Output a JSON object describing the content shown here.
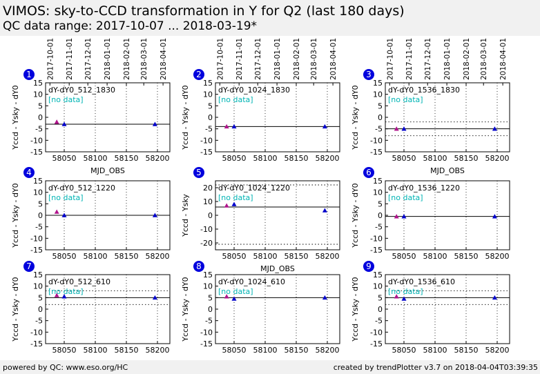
{
  "header": {
    "title": "VIMOS: sky-to-CCD transformation in Y for Q2 (last 180 days)",
    "subtitle": "QC data range: 2017-10-07 ... 2018-03-19*"
  },
  "footer": {
    "left": "powered by QC: www.eso.org/HC",
    "right": "created by trendPlotter v3.7 on 2018-04-04T03:39:35"
  },
  "colors": {
    "point_early": "#b0148c",
    "point": "#0000cc",
    "annotation": "#00b4b4",
    "panel_badge": "#0000dd",
    "header_bg": "#f1f1f1"
  },
  "chart_data": {
    "type": "scatter",
    "date_axis_ticks": [
      "2017-10-01",
      "2017-11-01",
      "2017-12-01",
      "2018-01-01",
      "2018-02-01",
      "2018-03-01",
      "2018-04-01"
    ],
    "x_ticks": [
      58050,
      58100,
      58150,
      58200
    ],
    "xlim": [
      58020,
      58220
    ],
    "x_marker": "^",
    "no_data_label": "[no data]",
    "panels": [
      {
        "number": "1",
        "label": "dY-dY0_512_1830",
        "ylabel": "Yccd - Ysky - dY0",
        "xlabel": "MJD_OBS",
        "ylim": [
          -15,
          15
        ],
        "yticks": [
          -15,
          -10,
          -5,
          0,
          5,
          10,
          15
        ],
        "ref_line": -3,
        "dotted": [],
        "show_date_axis": true,
        "points": [
          {
            "x": 58038,
            "y": -2
          },
          {
            "x": 58050,
            "y": -3
          },
          {
            "x": 58196,
            "y": -3
          }
        ]
      },
      {
        "number": "2",
        "label": "dY-dY0_1024_1830",
        "ylabel": "Yccd - Ysky - dY0",
        "xlabel": "",
        "ylim": [
          -15,
          15
        ],
        "yticks": [
          -15,
          -10,
          -5,
          0,
          5,
          10,
          15
        ],
        "ref_line": -4,
        "dotted": [],
        "show_date_axis": true,
        "points": [
          {
            "x": 58038,
            "y": -4
          },
          {
            "x": 58050,
            "y": -4
          },
          {
            "x": 58196,
            "y": -4
          }
        ]
      },
      {
        "number": "3",
        "label": "dY-dY0_1536_1830",
        "ylabel": "Yccd - Ysky - dY0",
        "xlabel": "MJD_OBS",
        "ylim": [
          -15,
          15
        ],
        "yticks": [
          -15,
          -10,
          -5,
          0,
          5,
          10,
          15
        ],
        "ref_line": -5,
        "dotted": [
          -2,
          -8
        ],
        "show_date_axis": true,
        "points": [
          {
            "x": 58038,
            "y": -5
          },
          {
            "x": 58050,
            "y": -5
          },
          {
            "x": 58196,
            "y": -5
          }
        ]
      },
      {
        "number": "4",
        "label": "dY-dY0_512_1220",
        "ylabel": "Yccd - Ysky - dY0",
        "xlabel": "",
        "ylim": [
          -15,
          15
        ],
        "yticks": [
          -15,
          -10,
          -5,
          0,
          5,
          10,
          15
        ],
        "ref_line": 0,
        "dotted": [],
        "show_date_axis": false,
        "points": [
          {
            "x": 58038,
            "y": 1.5
          },
          {
            "x": 58050,
            "y": 0
          },
          {
            "x": 58196,
            "y": 0
          }
        ]
      },
      {
        "number": "5",
        "label": "dY-dY0_1024_1220",
        "ylabel": "Yccd - Ysky",
        "xlabel": "MJD_OBS",
        "ylim": [
          -25,
          25
        ],
        "yticks": [
          -20,
          -10,
          0,
          10,
          20
        ],
        "ref_line": 6,
        "dotted": [
          22,
          -21
        ],
        "show_date_axis": false,
        "points": [
          {
            "x": 58038,
            "y": 7
          },
          {
            "x": 58050,
            "y": 8
          },
          {
            "x": 58196,
            "y": 3.5
          }
        ]
      },
      {
        "number": "6",
        "label": "dY-dY0_1536_1220",
        "ylabel": "Yccd - Ysky - dY0",
        "xlabel": "",
        "ylim": [
          -15,
          15
        ],
        "yticks": [
          -15,
          -10,
          -5,
          0,
          5,
          10,
          15
        ],
        "ref_line": -0.5,
        "dotted": [],
        "show_date_axis": false,
        "points": [
          {
            "x": 58038,
            "y": -0.5
          },
          {
            "x": 58050,
            "y": -0.5
          },
          {
            "x": 58196,
            "y": -0.5
          }
        ]
      },
      {
        "number": "7",
        "label": "dY-dY0_512_610",
        "ylabel": "Yccd - Ysky - dY0",
        "xlabel": "",
        "ylim": [
          -15,
          15
        ],
        "yticks": [
          -15,
          -10,
          -5,
          0,
          5,
          10,
          15
        ],
        "ref_line": 5,
        "dotted": [
          8,
          2
        ],
        "show_date_axis": false,
        "points": [
          {
            "x": 58038,
            "y": 6
          },
          {
            "x": 58050,
            "y": 5.5
          },
          {
            "x": 58196,
            "y": 5
          }
        ]
      },
      {
        "number": "8",
        "label": "dY-dY0_1024_610",
        "ylabel": "Yccd - Ysky - dY0",
        "xlabel": "",
        "ylim": [
          -15,
          15
        ],
        "yticks": [
          -15,
          -10,
          -5,
          0,
          5,
          10,
          15
        ],
        "ref_line": 5,
        "dotted": [],
        "show_date_axis": false,
        "points": [
          {
            "x": 58038,
            "y": 5.5
          },
          {
            "x": 58050,
            "y": 4.5
          },
          {
            "x": 58196,
            "y": 5
          }
        ]
      },
      {
        "number": "9",
        "label": "dY-dY0_1536_610",
        "ylabel": "Yccd - Ysky - dY0",
        "xlabel": "",
        "ylim": [
          -15,
          15
        ],
        "yticks": [
          -15,
          -10,
          -5,
          0,
          5,
          10,
          15
        ],
        "ref_line": 5,
        "dotted": [
          8,
          2
        ],
        "show_date_axis": false,
        "points": [
          {
            "x": 58038,
            "y": 5.5
          },
          {
            "x": 58050,
            "y": 4.5
          },
          {
            "x": 58196,
            "y": 5
          }
        ]
      }
    ]
  }
}
